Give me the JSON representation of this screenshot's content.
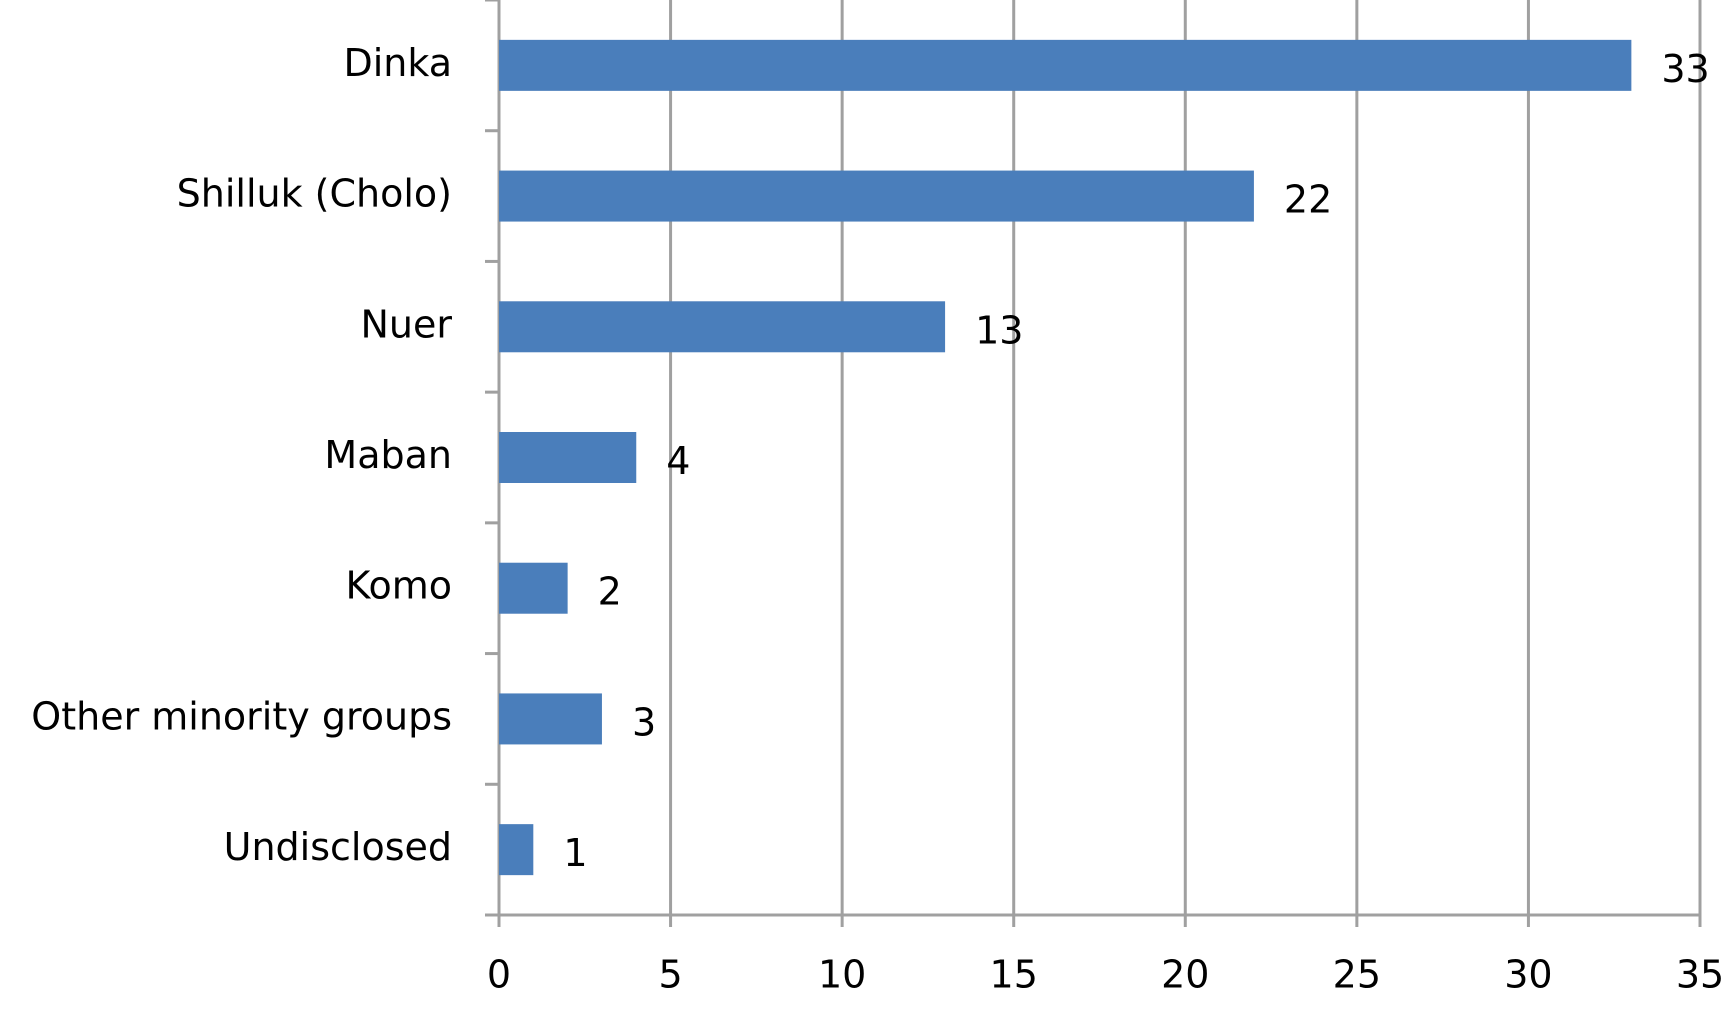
{
  "chart_data": {
    "type": "bar",
    "orientation": "horizontal",
    "categories": [
      "Dinka",
      "Shilluk (Cholo)",
      "Nuer",
      "Maban",
      "Komo",
      "Other minority groups",
      "Undisclosed"
    ],
    "values": [
      33,
      22,
      13,
      4,
      2,
      3,
      1
    ],
    "color": "#4a7ebb",
    "xlim": [
      0,
      35
    ],
    "xticks": [
      0,
      5,
      10,
      15,
      20,
      25,
      30,
      35
    ],
    "grid": true
  }
}
